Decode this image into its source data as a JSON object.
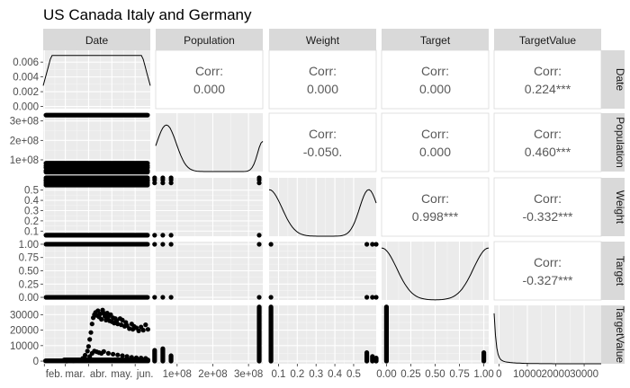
{
  "chart_data": {
    "type": "pairs",
    "title": "US Canada Italy and Germany",
    "variables": [
      "Date",
      "Population",
      "Weight",
      "Target",
      "TargetValue"
    ],
    "axes": {
      "Date": {
        "ticks": [
          "feb.",
          "mar.",
          "abr.",
          "may.",
          "jun."
        ],
        "range": [
          0,
          4.6
        ]
      },
      "Population": {
        "ticks": [
          "1e+08",
          "2e+08",
          "3e+08"
        ],
        "tick_values": [
          100000000,
          200000000,
          300000000
        ],
        "range": [
          40000000,
          340000000
        ]
      },
      "Weight": {
        "ticks": [
          "0.1",
          "0.2",
          "0.3",
          "0.4",
          "0.5"
        ],
        "tick_values": [
          0.1,
          0.2,
          0.3,
          0.4,
          0.5
        ],
        "range": [
          0.05,
          0.62
        ]
      },
      "Target": {
        "ticks": [
          "0.00",
          "0.25",
          "0.50",
          "0.75",
          "1.00"
        ],
        "tick_values": [
          0,
          0.25,
          0.5,
          0.75,
          1
        ],
        "range": [
          -0.05,
          1.05
        ]
      },
      "TargetValue": {
        "ticks": [
          "0",
          "10000",
          "20000",
          "30000"
        ],
        "tick_values": [
          0,
          10000,
          20000,
          30000
        ],
        "range": [
          -1700,
          36000
        ]
      }
    },
    "density_y": {
      "Date": {
        "ticks": [
          "0.000",
          "0.002",
          "0.004",
          "0.006"
        ],
        "tick_values": [
          0,
          0.002,
          0.004,
          0.006
        ],
        "range": [
          -0.0003,
          0.0076
        ]
      }
    },
    "correlations": [
      {
        "row": "Date",
        "col": "Population",
        "label": "Corr:",
        "value": "0.000"
      },
      {
        "row": "Date",
        "col": "Weight",
        "label": "Corr:",
        "value": "0.000"
      },
      {
        "row": "Date",
        "col": "Target",
        "label": "Corr:",
        "value": "0.000"
      },
      {
        "row": "Date",
        "col": "TargetValue",
        "label": "Corr:",
        "value": "0.224***"
      },
      {
        "row": "Population",
        "col": "Weight",
        "label": "Corr:",
        "value": "-0.050."
      },
      {
        "row": "Population",
        "col": "Target",
        "label": "Corr:",
        "value": "0.000"
      },
      {
        "row": "Population",
        "col": "TargetValue",
        "label": "Corr:",
        "value": "0.460***"
      },
      {
        "row": "Weight",
        "col": "Target",
        "label": "Corr:",
        "value": "0.998***"
      },
      {
        "row": "Weight",
        "col": "TargetValue",
        "label": "Corr:",
        "value": "-0.332***"
      },
      {
        "row": "Target",
        "col": "TargetValue",
        "label": "Corr:",
        "value": "-0.327***"
      }
    ],
    "observed_levels": {
      "Population": [
        37000000,
        60000000,
        83000000,
        330000000
      ],
      "Weight": [
        0.06,
        0.57,
        0.6,
        0.62
      ],
      "Target": [
        0,
        1
      ]
    },
    "targetvalue_by_date": [
      [
        1.0,
        50
      ],
      [
        1.3,
        200
      ],
      [
        1.5,
        600
      ],
      [
        1.7,
        1800
      ],
      [
        1.8,
        3800
      ],
      [
        1.9,
        6500
      ],
      [
        1.95,
        9500
      ],
      [
        2.0,
        14000
      ],
      [
        2.05,
        18500
      ],
      [
        2.1,
        24000
      ],
      [
        2.15,
        28000
      ],
      [
        2.2,
        30000
      ],
      [
        2.25,
        31500
      ],
      [
        2.3,
        29500
      ],
      [
        2.35,
        32500
      ],
      [
        2.4,
        28500
      ],
      [
        2.45,
        30500
      ],
      [
        2.5,
        27000
      ],
      [
        2.55,
        33000
      ],
      [
        2.6,
        31000
      ],
      [
        2.65,
        29000
      ],
      [
        2.7,
        26500
      ],
      [
        2.75,
        31000
      ],
      [
        2.8,
        28500
      ],
      [
        2.85,
        26000
      ],
      [
        2.9,
        30000
      ],
      [
        2.95,
        25500
      ],
      [
        3.0,
        28000
      ],
      [
        3.05,
        24500
      ],
      [
        3.1,
        27500
      ],
      [
        3.15,
        26000
      ],
      [
        3.2,
        24000
      ],
      [
        3.3,
        27500
      ],
      [
        3.35,
        23500
      ],
      [
        3.4,
        26500
      ],
      [
        3.5,
        22500
      ],
      [
        3.55,
        25000
      ],
      [
        3.6,
        23000
      ],
      [
        3.7,
        21000
      ],
      [
        3.8,
        24000
      ],
      [
        3.85,
        20500
      ],
      [
        3.9,
        22500
      ],
      [
        4.0,
        21500
      ],
      [
        4.1,
        19500
      ],
      [
        4.2,
        22000
      ],
      [
        4.3,
        20000
      ],
      [
        4.4,
        23500
      ],
      [
        4.5,
        20500
      ]
    ],
    "targetvalue_by_date_low": [
      [
        1.6,
        500
      ],
      [
        1.8,
        1500
      ],
      [
        2.0,
        3000
      ],
      [
        2.1,
        5000
      ],
      [
        2.2,
        6500
      ],
      [
        2.3,
        6000
      ],
      [
        2.4,
        5500
      ],
      [
        2.5,
        5000
      ],
      [
        2.6,
        6200
      ],
      [
        2.8,
        5000
      ],
      [
        3.0,
        4500
      ],
      [
        3.2,
        4000
      ],
      [
        3.4,
        3500
      ],
      [
        3.6,
        3000
      ],
      [
        3.8,
        2500
      ],
      [
        4.0,
        2200
      ],
      [
        4.2,
        2000
      ],
      [
        4.4,
        1800
      ]
    ]
  }
}
